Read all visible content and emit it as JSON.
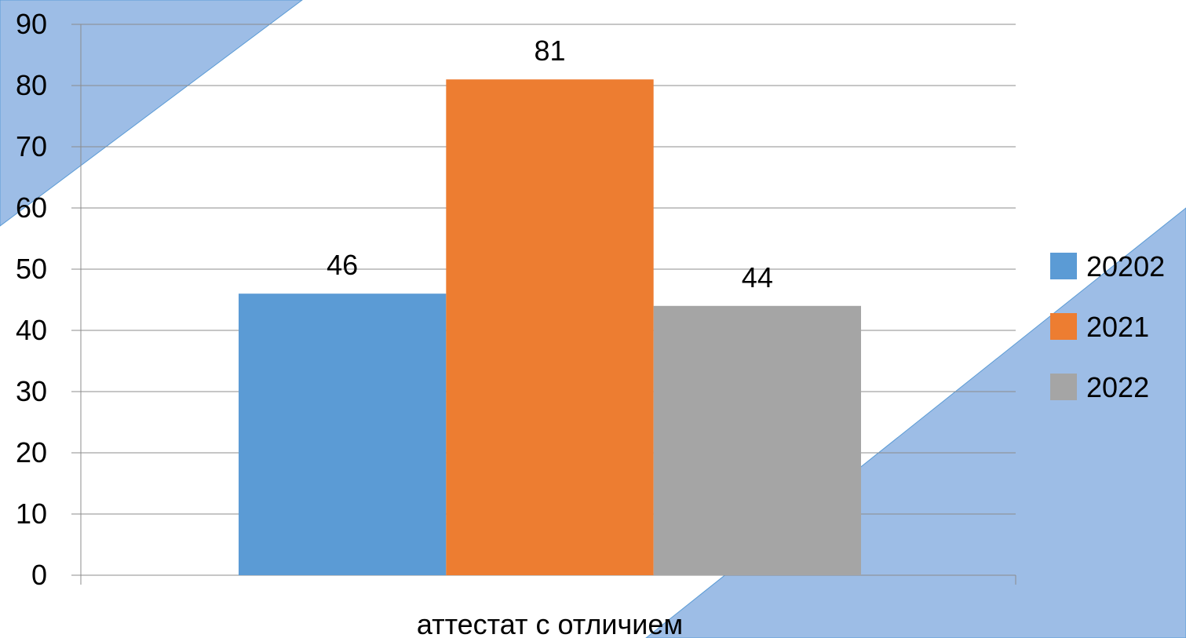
{
  "chart_data": {
    "type": "bar",
    "title": "",
    "xlabel": "",
    "ylabel": "",
    "categories": [
      "аттестат с отличием"
    ],
    "series": [
      {
        "name": "20202",
        "values": [
          46
        ],
        "color": "#5b9bd5"
      },
      {
        "name": "2021",
        "values": [
          81
        ],
        "color": "#ed7d31"
      },
      {
        "name": "2022",
        "values": [
          44
        ],
        "color": "#a5a5a5"
      }
    ],
    "ylim": [
      0,
      90
    ],
    "yticks": [
      0,
      10,
      20,
      30,
      40,
      50,
      60,
      70,
      80,
      90
    ],
    "grid": true,
    "legend_position": "right",
    "data_labels": true
  },
  "background": {
    "decoration": "blue diagonal triangles",
    "decoration_color": "#9dbde6",
    "decoration_edge_color": "#5b9bd5"
  }
}
